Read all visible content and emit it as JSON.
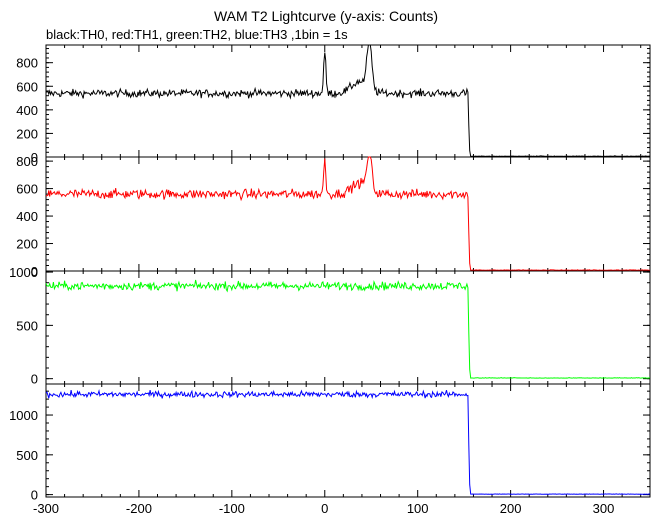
{
  "chart_data": {
    "type": "line",
    "title": "WAM T2 Lightcurve (y-axis: Counts)",
    "subtitle": "black:TH0, red:TH1, green:TH2, blue:TH3 ,1bin = 1s",
    "xlim": [
      -300,
      350
    ],
    "xticks": [
      -300,
      -200,
      -100,
      0,
      100,
      200,
      300
    ],
    "grid": false,
    "panels": [
      {
        "name": "TH0",
        "color": "#000000",
        "ylim": [
          0,
          950
        ],
        "yticks": [
          0,
          200,
          400,
          600,
          800
        ],
        "baseline": 540,
        "noise": 30,
        "drop_x": 155,
        "post_level": 5,
        "features": [
          {
            "x": 0,
            "peak": 890,
            "width": 1.2
          },
          {
            "x": 48,
            "peak": 950,
            "width": 2.5
          },
          {
            "x": 38,
            "peak": 640,
            "width": 9
          }
        ]
      },
      {
        "name": "TH1",
        "color": "#ff0000",
        "ylim": [
          0,
          830
        ],
        "yticks": [
          0,
          200,
          400,
          600,
          800
        ],
        "baseline": 560,
        "noise": 32,
        "drop_x": 155,
        "post_level": 5,
        "features": [
          {
            "x": 0,
            "peak": 800,
            "width": 1.2
          },
          {
            "x": 48,
            "peak": 830,
            "width": 2.5
          },
          {
            "x": 38,
            "peak": 640,
            "width": 9
          }
        ]
      },
      {
        "name": "TH2",
        "color": "#00ff00",
        "ylim": [
          -50,
          1010
        ],
        "yticks": [
          0,
          500,
          1000
        ],
        "baseline": 870,
        "noise": 35,
        "drop_x": 155,
        "post_level": 5,
        "features": []
      },
      {
        "name": "TH3",
        "color": "#0000ff",
        "ylim": [
          -30,
          1390
        ],
        "yticks": [
          0,
          500,
          1000
        ],
        "baseline": 1260,
        "noise": 35,
        "drop_x": 155,
        "post_level": 5,
        "features": []
      }
    ]
  }
}
